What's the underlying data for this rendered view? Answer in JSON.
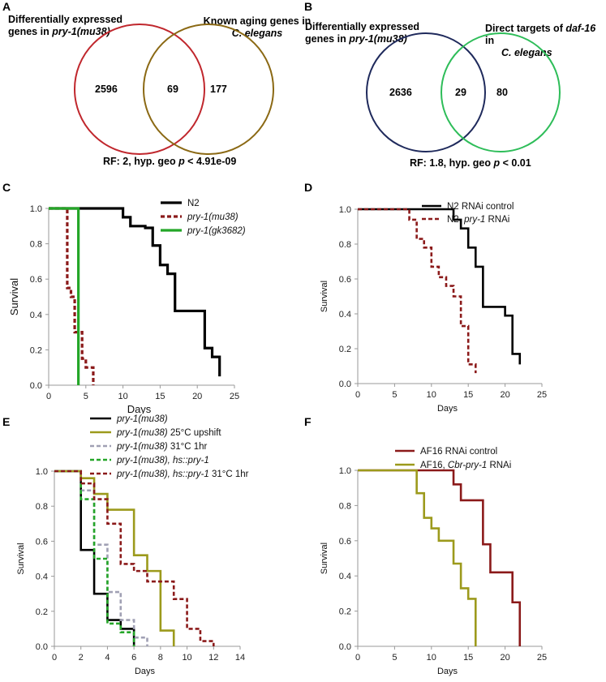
{
  "panels": {
    "A": {
      "label": "A",
      "left_title": [
        "Differentially expressed",
        "genes in ",
        "pry-1(mu38)"
      ],
      "right_title": [
        "Known aging genes in",
        "C. elegans"
      ],
      "counts": [
        "2596",
        "69",
        "177"
      ],
      "stat": [
        "RF: 2, hyp. geo ",
        "p",
        " < 4.91e-09"
      ],
      "left_color": "#c0272d",
      "right_color": "#8b6914"
    },
    "B": {
      "label": "B",
      "left_title": [
        "Differentially expressed",
        "genes in ",
        "pry-1(mu38)"
      ],
      "right_title": [
        "Direct targets of ",
        "daf-16",
        " in",
        "C. elegans"
      ],
      "counts": [
        "2636",
        "29",
        "80"
      ],
      "stat": [
        "RF: 1.8, hyp. geo ",
        "p",
        " < 0.01"
      ],
      "left_color": "#1f2a5c",
      "right_color": "#2ebd59"
    },
    "C": {
      "label": "C"
    },
    "D": {
      "label": "D"
    },
    "E": {
      "label": "E"
    },
    "F": {
      "label": "F"
    }
  },
  "chart_data": [
    {
      "id": "C",
      "type": "line",
      "step": true,
      "xlabel": "Days",
      "ylabel": "Survival",
      "xlim": [
        0,
        25
      ],
      "ylim": [
        0,
        1
      ],
      "xticks": [
        "0",
        "5",
        "10",
        "15",
        "20",
        "25"
      ],
      "yticks": [
        "0.0",
        "0.2",
        "0.4",
        "0.6",
        "0.8",
        "1.0"
      ],
      "series": [
        {
          "name": "N2",
          "color": "#000000",
          "dash": false,
          "x": [
            0,
            9,
            10,
            11,
            13,
            14,
            15,
            16,
            17,
            20,
            21,
            22,
            23
          ],
          "y": [
            1.0,
            1.0,
            0.95,
            0.9,
            0.89,
            0.79,
            0.68,
            0.63,
            0.42,
            0.42,
            0.21,
            0.16,
            0.05
          ]
        },
        {
          "name": "pry-1(mu38)",
          "color": "#8b1a1a",
          "dash": true,
          "x": [
            0,
            2,
            2.5,
            3,
            3.5,
            4,
            4.5,
            5,
            6
          ],
          "y": [
            1.0,
            1.0,
            0.55,
            0.5,
            0.3,
            0.3,
            0.15,
            0.1,
            0.0
          ]
        },
        {
          "name": "pry-1(gk3682)",
          "color": "#24a628",
          "dash": false,
          "x": [
            0,
            3,
            4
          ],
          "y": [
            1.0,
            1.0,
            0.76
          ]
        }
      ],
      "drops": {
        "pry-1(gk3682)": [
          4,
          0.0
        ]
      }
    },
    {
      "id": "D",
      "type": "line",
      "step": true,
      "xlabel": "Days",
      "ylabel": "Survival",
      "xlim": [
        0,
        25
      ],
      "ylim": [
        0,
        1
      ],
      "xticks": [
        "0",
        "5",
        "10",
        "15",
        "20",
        "25"
      ],
      "yticks": [
        "0.0",
        "0.2",
        "0.4",
        "0.6",
        "0.8",
        "1.0"
      ],
      "series": [
        {
          "name": "N2 RNAi control",
          "color": "#000000",
          "dash": false,
          "x": [
            0,
            12,
            13,
            14,
            15,
            16,
            17,
            20,
            21,
            22
          ],
          "y": [
            1.0,
            1.0,
            0.94,
            0.89,
            0.78,
            0.67,
            0.44,
            0.39,
            0.17,
            0.11
          ]
        },
        {
          "name": "N2, pry-1 RNAi",
          "color": "#8b1a1a",
          "dash": true,
          "x": [
            0,
            6,
            7,
            8,
            9,
            10,
            11,
            12,
            13,
            14,
            15,
            16
          ],
          "y": [
            1.0,
            1.0,
            0.94,
            0.83,
            0.78,
            0.67,
            0.61,
            0.56,
            0.5,
            0.33,
            0.11,
            0.06
          ]
        }
      ]
    },
    {
      "id": "E",
      "type": "line",
      "step": true,
      "xlabel": "Days",
      "ylabel": "Survival",
      "xlim": [
        0,
        14
      ],
      "ylim": [
        0,
        1
      ],
      "xticks": [
        "0",
        "2",
        "4",
        "6",
        "8",
        "10",
        "12",
        "14"
      ],
      "yticks": [
        "0.0",
        "0.2",
        "0.4",
        "0.6",
        "0.8",
        "1.0"
      ],
      "series": [
        {
          "name": "pry-1(mu38)",
          "color": "#000000",
          "dash": false,
          "x": [
            0,
            2,
            3,
            4,
            5,
            6
          ],
          "y": [
            1.0,
            0.55,
            0.3,
            0.15,
            0.1,
            0.0
          ]
        },
        {
          "name": "pry-1(mu38) 25°C upshift",
          "color": "#9c9a1c",
          "dash": false,
          "x": [
            0,
            2,
            3,
            4,
            6,
            7,
            8,
            9
          ],
          "y": [
            1.0,
            0.96,
            0.87,
            0.78,
            0.52,
            0.43,
            0.09,
            0.0
          ]
        },
        {
          "name": "pry-1(mu38) 31°C 1hr",
          "color": "#a0a0b4",
          "dash": true,
          "x": [
            0,
            2,
            3,
            4,
            5,
            6,
            7
          ],
          "y": [
            1.0,
            0.89,
            0.58,
            0.31,
            0.15,
            0.05,
            0.0
          ]
        },
        {
          "name": "pry-1(mu38), hs::pry-1",
          "color": "#24a628",
          "dash": true,
          "x": [
            0,
            2,
            3,
            4,
            5,
            6
          ],
          "y": [
            1.0,
            0.84,
            0.5,
            0.13,
            0.08,
            0.0
          ]
        },
        {
          "name": "pry-1(mu38), hs::pry-1 31°C 1hr",
          "color": "#8b1a1a",
          "dash": true,
          "x": [
            0,
            2,
            3,
            4,
            5,
            6,
            7,
            8,
            9,
            10,
            11,
            12
          ],
          "y": [
            1.0,
            0.93,
            0.84,
            0.7,
            0.47,
            0.43,
            0.37,
            0.37,
            0.27,
            0.1,
            0.03,
            0.0
          ]
        }
      ]
    },
    {
      "id": "F",
      "type": "line",
      "step": true,
      "xlabel": "Days",
      "ylabel": "Survival",
      "xlim": [
        0,
        25
      ],
      "ylim": [
        0,
        1
      ],
      "xticks": [
        "0",
        "5",
        "10",
        "15",
        "20",
        "25"
      ],
      "yticks": [
        "0.0",
        "0.2",
        "0.4",
        "0.6",
        "0.8",
        "1.0"
      ],
      "series": [
        {
          "name": "AF16 RNAi control",
          "color": "#8b1a1a",
          "dash": false,
          "x": [
            0,
            12,
            13,
            14,
            17,
            18,
            21,
            22
          ],
          "y": [
            1.0,
            1.0,
            0.92,
            0.83,
            0.58,
            0.42,
            0.25,
            0.0
          ]
        },
        {
          "name": "AF16, Cbr-pry-1 RNAi",
          "color": "#9c9a1c",
          "dash": false,
          "x": [
            0,
            8,
            9,
            10,
            11,
            13,
            14,
            15,
            16
          ],
          "y": [
            1.0,
            0.87,
            0.73,
            0.67,
            0.6,
            0.47,
            0.33,
            0.27,
            0.0
          ]
        }
      ]
    }
  ],
  "legends": {
    "C": [
      [
        {
          "t": "N2",
          "i": false
        }
      ],
      [
        {
          "t": "pry-1(mu38)",
          "i": true
        }
      ],
      [
        {
          "t": "pry-1(gk3682)",
          "i": true
        }
      ]
    ],
    "D": [
      [
        {
          "t": "N2 RNAi control",
          "i": false
        }
      ],
      [
        {
          "t": "N2, ",
          "i": false
        },
        {
          "t": "pry-1",
          "i": true
        },
        {
          "t": " RNAi",
          "i": false
        }
      ]
    ],
    "E": [
      [
        {
          "t": "pry-1(mu38)",
          "i": true
        }
      ],
      [
        {
          "t": "pry-1(mu38)",
          "i": true
        },
        {
          "t": " 25°C upshift",
          "i": false
        }
      ],
      [
        {
          "t": "pry-1(mu38)",
          "i": true
        },
        {
          "t": " 31°C 1hr",
          "i": false
        }
      ],
      [
        {
          "t": "pry-1(mu38), hs::pry-1",
          "i": true
        }
      ],
      [
        {
          "t": "pry-1(mu38), hs::pry-1",
          "i": true
        },
        {
          "t": " 31°C 1hr",
          "i": false
        }
      ]
    ],
    "F": [
      [
        {
          "t": "AF16 RNAi control",
          "i": false
        }
      ],
      [
        {
          "t": "AF16, ",
          "i": false
        },
        {
          "t": "Cbr-pry-1",
          "i": true
        },
        {
          "t": " RNAi",
          "i": false
        }
      ]
    ]
  }
}
